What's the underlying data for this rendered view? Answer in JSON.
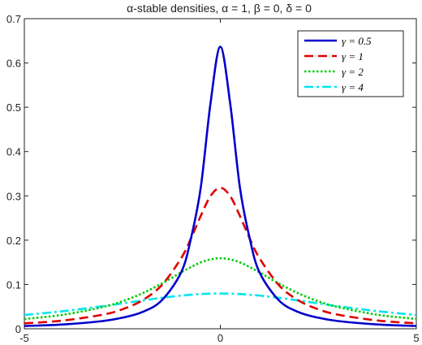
{
  "chart_data": {
    "type": "line",
    "title": "α-stable  densities,  α  =  1,  β  =  0,  δ  =  0",
    "xlabel": "",
    "ylabel": "",
    "xlim": [
      -5,
      5
    ],
    "ylim": [
      0,
      0.7
    ],
    "xticks": [
      "-5",
      "0",
      "5"
    ],
    "yticks": [
      "0",
      "0.1",
      "0.2",
      "0.3",
      "0.4",
      "0.5",
      "0.6",
      "0.7"
    ],
    "legend_position": "top-right",
    "x": [
      -5,
      -4,
      -3,
      -2.5,
      -2,
      -1.5,
      -1,
      -0.75,
      -0.5,
      -0.25,
      0,
      0.25,
      0.5,
      0.75,
      1,
      1.5,
      2,
      2.5,
      3,
      4,
      5
    ],
    "series": [
      {
        "name": "γ = 0.5",
        "color": "#0000cc",
        "dash": "solid",
        "values": [
          0.0063,
          0.0098,
          0.0174,
          0.0249,
          0.0374,
          0.0637,
          0.1273,
          0.2037,
          0.3183,
          0.5093,
          0.6366,
          0.5093,
          0.3183,
          0.2037,
          0.1273,
          0.0637,
          0.0374,
          0.0249,
          0.0174,
          0.0098,
          0.0063
        ]
      },
      {
        "name": "γ = 1",
        "color": "#e00000",
        "dash": "dashed",
        "values": [
          0.0122,
          0.0187,
          0.0318,
          0.0439,
          0.0637,
          0.0979,
          0.1592,
          0.2037,
          0.2546,
          0.2996,
          0.3183,
          0.2996,
          0.2546,
          0.2037,
          0.1592,
          0.0979,
          0.0637,
          0.0439,
          0.0318,
          0.0187,
          0.0122
        ]
      },
      {
        "name": "γ = 2",
        "color": "#00cc00",
        "dash": "dotted",
        "values": [
          0.022,
          0.0318,
          0.049,
          0.0621,
          0.0796,
          0.1019,
          0.1273,
          0.1392,
          0.1498,
          0.1567,
          0.1592,
          0.1567,
          0.1498,
          0.1392,
          0.1273,
          0.1019,
          0.0796,
          0.0621,
          0.049,
          0.0318,
          0.022
        ]
      },
      {
        "name": "γ = 4",
        "color": "#00e5ee",
        "dash": "dashdot",
        "values": [
          0.0311,
          0.0398,
          0.0509,
          0.0573,
          0.0637,
          0.0698,
          0.0749,
          0.0769,
          0.0784,
          0.0793,
          0.0796,
          0.0793,
          0.0784,
          0.0769,
          0.0749,
          0.0698,
          0.0637,
          0.0573,
          0.0509,
          0.0398,
          0.0311
        ]
      }
    ]
  }
}
